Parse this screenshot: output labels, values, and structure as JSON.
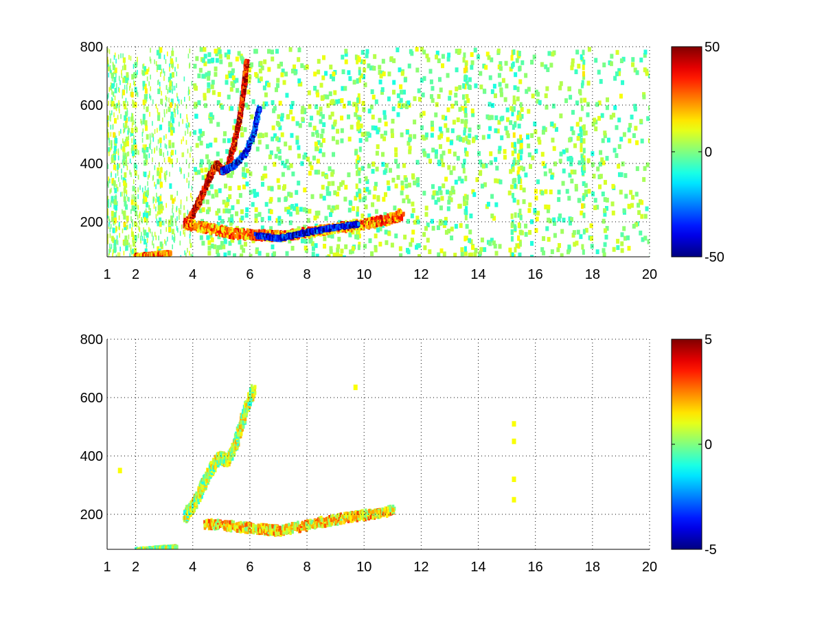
{
  "colormap": "jet",
  "chart_data": [
    {
      "type": "heatmap",
      "panel": "top",
      "title": "",
      "xlabel": "",
      "ylabel": "",
      "xlim": [
        1,
        20
      ],
      "ylim": [
        80,
        800
      ],
      "xticks": [
        "1",
        "2",
        "4",
        "6",
        "8",
        "10",
        "12",
        "14",
        "16",
        "18",
        "20"
      ],
      "yticks": [
        "200",
        "400",
        "600",
        "800"
      ],
      "grid": true,
      "colorbar": {
        "clim": [
          -50,
          50
        ],
        "ticks": [
          "50",
          "0",
          "-50"
        ]
      },
      "features": [
        {
          "name": "",
          "points": [
            [
              3.7,
              195
            ],
            [
              4.0,
              240
            ],
            [
              4.3,
              300
            ],
            [
              4.6,
              370
            ],
            [
              4.8,
              405
            ],
            [
              5.0,
              380
            ],
            [
              5.2,
              395
            ],
            [
              5.4,
              470
            ],
            [
              5.6,
              560
            ],
            [
              5.75,
              660
            ],
            [
              5.85,
              760
            ]
          ],
          "value": 40,
          "width": 16
        },
        {
          "name": "",
          "points": [
            [
              5.0,
              380
            ],
            [
              5.4,
              400
            ],
            [
              5.8,
              440
            ],
            [
              6.1,
              510
            ],
            [
              6.3,
              600
            ]
          ],
          "value": -35,
          "width": 14
        },
        {
          "name": "",
          "points": [
            [
              3.7,
              200
            ],
            [
              4.5,
              185
            ],
            [
              5.5,
              165
            ],
            [
              6.5,
              160
            ],
            [
              7.0,
              158
            ],
            [
              8.0,
              170
            ],
            [
              9.0,
              185
            ],
            [
              10.0,
              200
            ],
            [
              10.8,
              215
            ],
            [
              11.3,
              230
            ]
          ],
          "value": 25,
          "width": 30
        },
        {
          "name": "",
          "points": [
            [
              6.2,
              160
            ],
            [
              7.0,
              150
            ],
            [
              7.8,
              168
            ],
            [
              8.8,
              185
            ],
            [
              9.8,
              200
            ]
          ],
          "value": -40,
          "width": 12
        },
        {
          "name": "",
          "points": [
            [
              2.0,
              90
            ],
            [
              2.6,
              95
            ],
            [
              3.2,
              100
            ]
          ],
          "value": 25,
          "width": 10
        }
      ]
    },
    {
      "type": "heatmap",
      "panel": "bottom",
      "title": "",
      "xlabel": "",
      "ylabel": "",
      "xlim": [
        1,
        20
      ],
      "ylim": [
        80,
        800
      ],
      "xticks": [
        "1",
        "2",
        "4",
        "6",
        "8",
        "10",
        "12",
        "14",
        "16",
        "18",
        "20"
      ],
      "yticks": [
        "200",
        "400",
        "600",
        "800"
      ],
      "grid": true,
      "colorbar": {
        "clim": [
          -5,
          5
        ],
        "ticks": [
          "5",
          "0",
          "-5"
        ]
      },
      "features": [
        {
          "name": "",
          "points": [
            [
              3.7,
              200
            ],
            [
              4.0,
              240
            ],
            [
              4.3,
              300
            ],
            [
              4.6,
              360
            ],
            [
              4.9,
              400
            ],
            [
              5.2,
              390
            ],
            [
              5.5,
              460
            ],
            [
              5.8,
              560
            ],
            [
              6.1,
              640
            ]
          ],
          "value": 0.5,
          "width": 40
        },
        {
          "name": "",
          "points": [
            [
              4.4,
              175
            ],
            [
              5.5,
              165
            ],
            [
              6.5,
              155
            ],
            [
              7.0,
              150
            ],
            [
              8.0,
              170
            ],
            [
              9.0,
              190
            ],
            [
              10.0,
              205
            ],
            [
              11.0,
              220
            ]
          ],
          "value": 1.5,
          "width": 30
        },
        {
          "name": "",
          "points": [
            [
              2.0,
              85
            ],
            [
              2.7,
              90
            ],
            [
              3.4,
              95
            ]
          ],
          "value": 0.3,
          "width": 8
        }
      ],
      "isolated_points": [
        [
          15.25,
          250
        ],
        [
          15.25,
          320
        ],
        [
          15.25,
          450
        ],
        [
          15.25,
          510
        ],
        [
          9.7,
          635
        ],
        [
          1.45,
          350
        ]
      ]
    }
  ]
}
